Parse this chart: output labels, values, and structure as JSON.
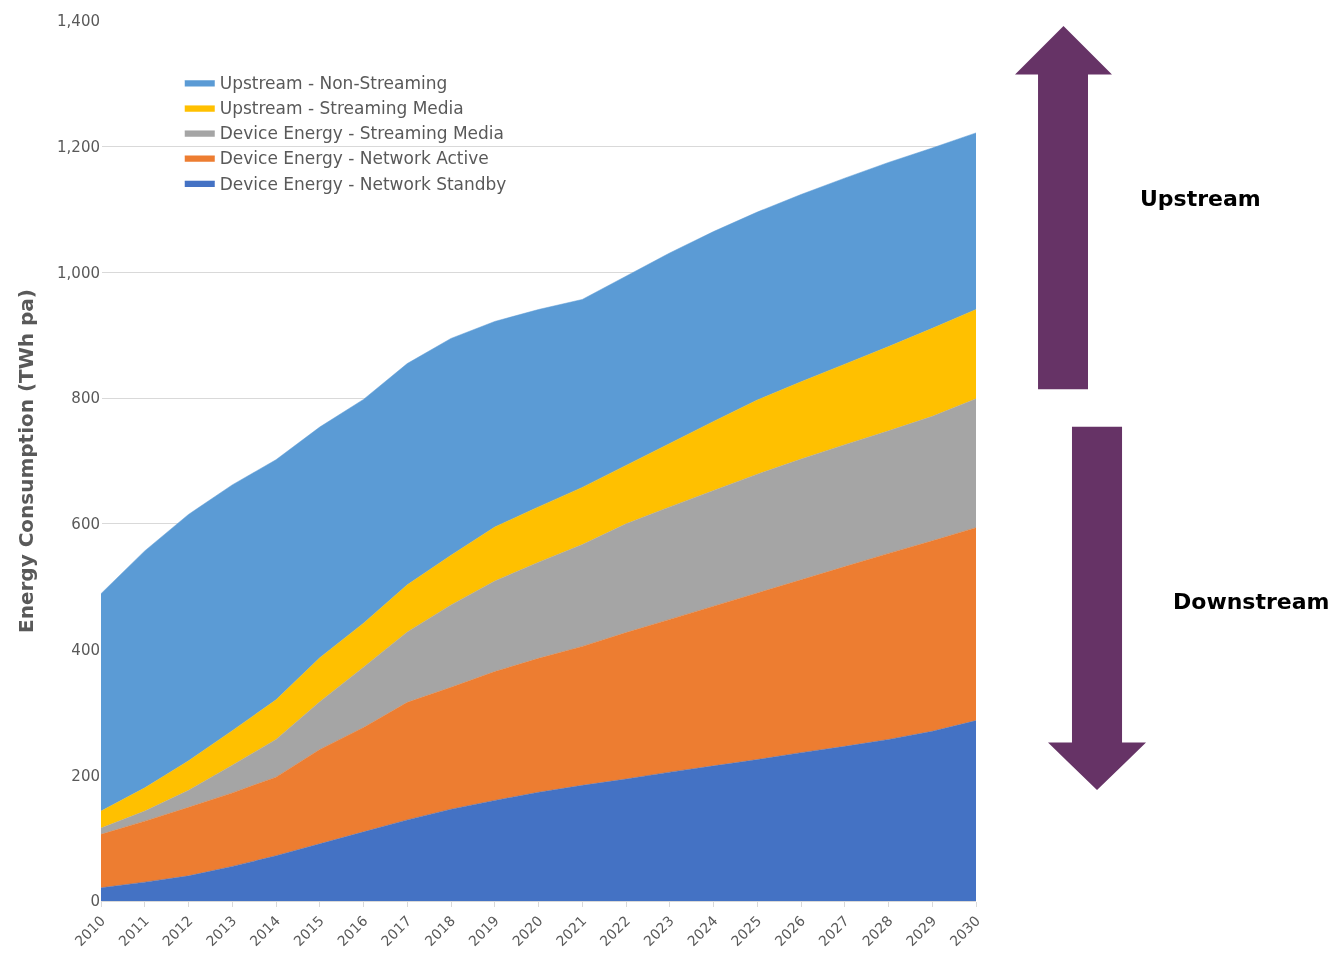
{
  "chart_data": {
    "type": "area",
    "stacked": true,
    "ylabel": "Energy Consumption (TWh pa)",
    "categories": [
      "2010",
      "2011",
      "2012",
      "2013",
      "2014",
      "2015",
      "2016",
      "2017",
      "2018",
      "2019",
      "2020",
      "2021",
      "2022",
      "2023",
      "2024",
      "2025",
      "2026",
      "2027",
      "2028",
      "2029",
      "2030"
    ],
    "series": [
      {
        "name": "Device Energy - Network Standby",
        "color": "#4472c4",
        "values": [
          21,
          30,
          40,
          55,
          72,
          91,
          110,
          129,
          146,
          160,
          173,
          184,
          194,
          205,
          215,
          225,
          236,
          246,
          257,
          270,
          287
        ]
      },
      {
        "name": "Device Energy - Network Active",
        "color": "#ed7d31",
        "values": [
          85,
          97,
          109,
          117,
          125,
          150,
          166,
          187,
          194,
          205,
          213,
          221,
          233,
          243,
          254,
          265,
          275,
          286,
          296,
          303,
          307
        ]
      },
      {
        "name": "Device Energy - Streaming Media",
        "color": "#a5a5a5",
        "values": [
          10,
          16,
          27,
          44,
          60,
          76,
          96,
          112,
          131,
          144,
          153,
          162,
          173,
          179,
          184,
          189,
          192,
          194,
          195,
          198,
          205
        ]
      },
      {
        "name": "Upstream - Streaming Media",
        "color": "#ffc000",
        "values": [
          27,
          37,
          47,
          55,
          63,
          70,
          70,
          75,
          79,
          86,
          88,
          91,
          93,
          101,
          110,
          118,
          123,
          128,
          134,
          140,
          142
        ]
      },
      {
        "name": "Upstream - Non-Streaming",
        "color": "#5b9bd5",
        "values": [
          346,
          377,
          392,
          391,
          382,
          367,
          356,
          352,
          345,
          327,
          314,
          299,
          301,
          303,
          302,
          299,
          298,
          296,
          293,
          287,
          281
        ]
      }
    ],
    "ylim": [
      0,
      1400
    ],
    "yticks": [
      0,
      200,
      400,
      600,
      800,
      {
        "value": 1000,
        "label": "1,000"
      },
      {
        "value": 1200,
        "label": "1,200"
      },
      {
        "value": 1400,
        "label": "1,400"
      }
    ],
    "grid": "y",
    "legend": "top left",
    "annotations": [
      "Upstream",
      "Downstream"
    ]
  }
}
